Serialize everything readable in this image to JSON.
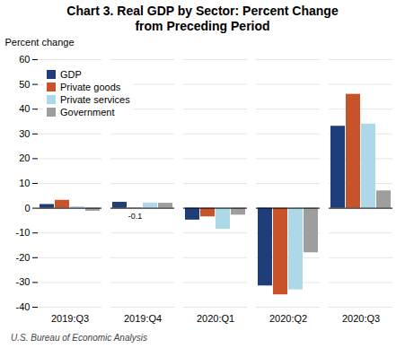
{
  "chart_data": {
    "type": "bar",
    "title": "Chart 3. Real GDP by Sector: Percent Change",
    "subtitle": "from Preceding Period",
    "ylabel": "Percent change",
    "caption": "U.S. Bureau of Economic Analysis",
    "categories": [
      "2019:Q3",
      "2019:Q4",
      "2020:Q1",
      "2020:Q2",
      "2020:Q3"
    ],
    "series": [
      {
        "name": "GDP",
        "color": "#1f3d7a",
        "values": [
          1.5,
          2.4,
          -4.8,
          -31.4,
          33.1
        ]
      },
      {
        "name": "Private goods",
        "color": "#c8522a",
        "values": [
          3.2,
          -0.1,
          -3.5,
          -35.0,
          46.0
        ]
      },
      {
        "name": "Private services",
        "color": "#add8e8",
        "values": [
          0.6,
          2.1,
          -8.5,
          -33.0,
          34.0
        ]
      },
      {
        "name": "Government",
        "color": "#9e9e9e",
        "values": [
          -1.2,
          2.0,
          -2.8,
          -18.0,
          7.0
        ]
      }
    ],
    "annotations": [
      {
        "text": "-0.1",
        "category": "2019:Q4",
        "series": "Private goods"
      }
    ],
    "ylim": [
      -40,
      60
    ],
    "yticks": [
      -40,
      -30,
      -20,
      -10,
      0,
      10,
      20,
      30,
      40,
      50,
      60
    ],
    "grid": true,
    "legend": "upper left"
  }
}
